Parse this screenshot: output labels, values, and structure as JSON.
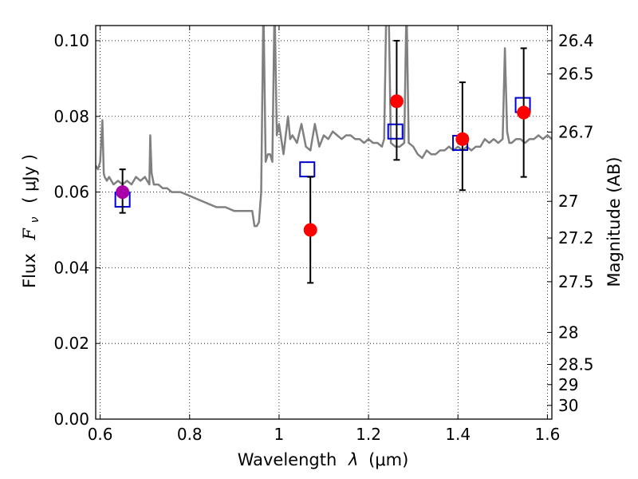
{
  "chart_data": {
    "type": "scatter",
    "title": "",
    "xlabel": "Wavelength  λ (μm)",
    "ylabel": "Flux  F_ν  ( μJy )",
    "ylabel_parts": {
      "flux": "Flux",
      "symbol": "F",
      "subscript": "ν",
      "unit": "( μJy )"
    },
    "xlabel_parts": {
      "text": "Wavelength",
      "symbol": "λ",
      "unit": "(μm)"
    },
    "y2label": "Magnitude (AB)",
    "xlim": [
      0.59,
      1.61
    ],
    "ylim": [
      0.0,
      0.104
    ],
    "grid": true,
    "x_ticks": [
      {
        "value": 0.6,
        "label": "0.6"
      },
      {
        "value": 0.8,
        "label": "0.8"
      },
      {
        "value": 1.0,
        "label": "1"
      },
      {
        "value": 1.2,
        "label": "1.2"
      },
      {
        "value": 1.4,
        "label": "1.4"
      },
      {
        "value": 1.6,
        "label": "1.6"
      }
    ],
    "y_ticks": [
      {
        "value": 0.0,
        "label": "0.00"
      },
      {
        "value": 0.02,
        "label": "0.02"
      },
      {
        "value": 0.04,
        "label": "0.04"
      },
      {
        "value": 0.06,
        "label": "0.06"
      },
      {
        "value": 0.08,
        "label": "0.08"
      },
      {
        "value": 0.1,
        "label": "0.10"
      }
    ],
    "mag_ticks": [
      {
        "mag": 26.4,
        "label": "26.4"
      },
      {
        "mag": 26.5,
        "label": "26.5"
      },
      {
        "mag": 26.7,
        "label": "26.7"
      },
      {
        "mag": 27.0,
        "label": "27"
      },
      {
        "mag": 27.2,
        "label": "27.2"
      },
      {
        "mag": 27.5,
        "label": "27.5"
      },
      {
        "mag": 28.0,
        "label": "28"
      },
      {
        "mag": 28.5,
        "label": "28.5"
      },
      {
        "mag": 29.0,
        "label": "29"
      },
      {
        "mag": 30.0,
        "label": "30"
      }
    ],
    "series": [
      {
        "kind": "line",
        "color": "#808080",
        "x": [
          0.59,
          0.595,
          0.6,
          0.605,
          0.608,
          0.61,
          0.615,
          0.62,
          0.63,
          0.64,
          0.65,
          0.66,
          0.67,
          0.68,
          0.69,
          0.7,
          0.71,
          0.712,
          0.715,
          0.72,
          0.73,
          0.74,
          0.75,
          0.76,
          0.77,
          0.78,
          0.8,
          0.82,
          0.84,
          0.86,
          0.88,
          0.9,
          0.92,
          0.93,
          0.94,
          0.945,
          0.95,
          0.955,
          0.96,
          0.965,
          0.97,
          0.975,
          0.98,
          0.985,
          0.99,
          0.995,
          1.0,
          1.01,
          1.02,
          1.025,
          1.03,
          1.04,
          1.05,
          1.06,
          1.07,
          1.08,
          1.09,
          1.1,
          1.11,
          1.12,
          1.13,
          1.14,
          1.15,
          1.16,
          1.17,
          1.18,
          1.19,
          1.2,
          1.21,
          1.22,
          1.23,
          1.235,
          1.24,
          1.245,
          1.25,
          1.26,
          1.27,
          1.28,
          1.285,
          1.29,
          1.3,
          1.31,
          1.32,
          1.33,
          1.34,
          1.35,
          1.36,
          1.37,
          1.38,
          1.39,
          1.4,
          1.41,
          1.42,
          1.43,
          1.44,
          1.45,
          1.46,
          1.47,
          1.48,
          1.49,
          1.5,
          1.505,
          1.51,
          1.515,
          1.52,
          1.53,
          1.54,
          1.55,
          1.56,
          1.57,
          1.58,
          1.59,
          1.6,
          1.61
        ],
        "y": [
          0.067,
          0.066,
          0.068,
          0.079,
          0.065,
          0.064,
          0.063,
          0.064,
          0.062,
          0.063,
          0.062,
          0.063,
          0.062,
          0.064,
          0.063,
          0.064,
          0.062,
          0.075,
          0.065,
          0.062,
          0.062,
          0.061,
          0.061,
          0.06,
          0.06,
          0.06,
          0.059,
          0.058,
          0.057,
          0.056,
          0.056,
          0.055,
          0.055,
          0.055,
          0.055,
          0.051,
          0.051,
          0.052,
          0.06,
          0.11,
          0.068,
          0.07,
          0.07,
          0.068,
          0.11,
          0.075,
          0.078,
          0.07,
          0.08,
          0.074,
          0.075,
          0.073,
          0.078,
          0.072,
          0.071,
          0.078,
          0.072,
          0.075,
          0.074,
          0.076,
          0.075,
          0.074,
          0.075,
          0.075,
          0.074,
          0.074,
          0.073,
          0.074,
          0.073,
          0.073,
          0.072,
          0.074,
          0.11,
          0.11,
          0.073,
          0.072,
          0.072,
          0.073,
          0.11,
          0.073,
          0.072,
          0.07,
          0.069,
          0.071,
          0.07,
          0.07,
          0.071,
          0.071,
          0.072,
          0.071,
          0.072,
          0.071,
          0.072,
          0.071,
          0.072,
          0.072,
          0.074,
          0.073,
          0.074,
          0.073,
          0.074,
          0.098,
          0.076,
          0.073,
          0.073,
          0.074,
          0.074,
          0.073,
          0.074,
          0.074,
          0.075,
          0.074,
          0.075,
          0.074
        ]
      },
      {
        "kind": "squares",
        "color": "#0000cc",
        "x": [
          0.65,
          1.063,
          1.26,
          1.405,
          1.545
        ],
        "y": [
          0.058,
          0.066,
          0.076,
          0.073,
          0.083
        ]
      },
      {
        "kind": "points",
        "color": "#ff0000",
        "x": [
          0.65,
          1.07,
          1.263,
          1.41,
          1.547
        ],
        "y": [
          0.06,
          0.05,
          0.084,
          0.074,
          0.081
        ],
        "yerr_low": [
          0.0545,
          0.036,
          0.0685,
          0.0605,
          0.064
        ],
        "yerr_high": [
          0.066,
          0.064,
          0.1,
          0.089,
          0.098
        ],
        "point_colors": [
          "#aa00aa",
          "#ff0000",
          "#ff0000",
          "#ff0000",
          "#ff0000"
        ]
      }
    ]
  }
}
